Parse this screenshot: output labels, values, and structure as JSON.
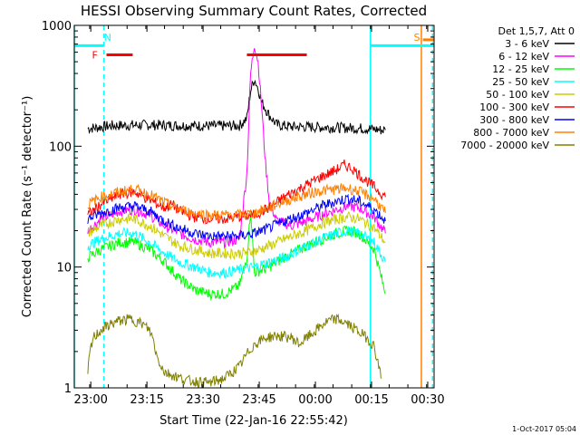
{
  "chart_data": {
    "type": "line",
    "title": "HESSI Observing Summary Count Rates, Corrected",
    "xlabel": "Start Time (22-Jan-16 22:55:42)",
    "ylabel": "Corrected Count Rate (s⁻¹ detector⁻¹)",
    "y_scale": "log",
    "ylim": [
      1,
      1000
    ],
    "xlim": [
      -0.1,
      96.0
    ],
    "x_tick_labels": [
      "23:00",
      "23:15",
      "23:30",
      "23:45",
      "00:00",
      "00:15",
      "00:30"
    ],
    "x_tick_minutes": [
      4.3,
      19.3,
      34.3,
      49.3,
      64.3,
      79.3,
      94.3
    ],
    "y_tick_labels": [
      "1",
      "10",
      "100",
      "1000"
    ],
    "y_tick_values": [
      1,
      10,
      100,
      1000
    ],
    "legend_header": "Det 1,5,7, Att 0",
    "legend_placement": "right",
    "series": [
      {
        "name": "3 - 6 keV",
        "color": "#000000",
        "points": [
          [
            3.5,
            140
          ],
          [
            10,
            148
          ],
          [
            20,
            150
          ],
          [
            30,
            148
          ],
          [
            40,
            147
          ],
          [
            44,
            148
          ],
          [
            46,
            170
          ],
          [
            47,
            290
          ],
          [
            48,
            360
          ],
          [
            49,
            300
          ],
          [
            50,
            230
          ],
          [
            52,
            180
          ],
          [
            54,
            150
          ],
          [
            58,
            145
          ],
          [
            65,
            144
          ],
          [
            72,
            142
          ],
          [
            78,
            140
          ],
          [
            82,
            136
          ],
          [
            83,
            136
          ]
        ]
      },
      {
        "name": "6 - 12 keV",
        "color": "#ff00ff",
        "points": [
          [
            3.5,
            20
          ],
          [
            7,
            25
          ],
          [
            12,
            29
          ],
          [
            16,
            30
          ],
          [
            20,
            27
          ],
          [
            24,
            22
          ],
          [
            28,
            19
          ],
          [
            32,
            17
          ],
          [
            36,
            16
          ],
          [
            40,
            16
          ],
          [
            44,
            17
          ],
          [
            46,
            60
          ],
          [
            47,
            400
          ],
          [
            48,
            700
          ],
          [
            49,
            500
          ],
          [
            50,
            200
          ],
          [
            51,
            70
          ],
          [
            52,
            35
          ],
          [
            54,
            24
          ],
          [
            58,
            22
          ],
          [
            62,
            24
          ],
          [
            66,
            27
          ],
          [
            70,
            30
          ],
          [
            73,
            32
          ],
          [
            76,
            31
          ],
          [
            80,
            26
          ],
          [
            83,
            19
          ]
        ]
      },
      {
        "name": "12 - 25 keV",
        "color": "#00ff00",
        "points": [
          [
            3.5,
            12
          ],
          [
            7,
            14
          ],
          [
            12,
            16
          ],
          [
            16,
            16
          ],
          [
            20,
            14
          ],
          [
            24,
            11
          ],
          [
            28,
            8
          ],
          [
            32,
            6.5
          ],
          [
            36,
            6
          ],
          [
            40,
            6
          ],
          [
            44,
            7
          ],
          [
            46,
            12
          ],
          [
            47,
            30
          ],
          [
            48,
            9
          ],
          [
            52,
            10
          ],
          [
            56,
            12
          ],
          [
            62,
            15
          ],
          [
            66,
            17
          ],
          [
            70,
            19
          ],
          [
            73,
            20
          ],
          [
            76,
            19
          ],
          [
            80,
            14
          ],
          [
            83,
            6
          ]
        ]
      },
      {
        "name": "25 - 50 keV",
        "color": "#00ffff",
        "points": [
          [
            3.5,
            15
          ],
          [
            7,
            17
          ],
          [
            12,
            19
          ],
          [
            16,
            19
          ],
          [
            20,
            16
          ],
          [
            24,
            13
          ],
          [
            28,
            11
          ],
          [
            32,
            10
          ],
          [
            36,
            9
          ],
          [
            40,
            9
          ],
          [
            44,
            9.5
          ],
          [
            48,
            10
          ],
          [
            52,
            11
          ],
          [
            56,
            12
          ],
          [
            62,
            15
          ],
          [
            66,
            17
          ],
          [
            70,
            19
          ],
          [
            73,
            20
          ],
          [
            76,
            19
          ],
          [
            80,
            16
          ],
          [
            83,
            11
          ]
        ]
      },
      {
        "name": "50 - 100 keV",
        "color": "#cccc00",
        "points": [
          [
            3.5,
            19
          ],
          [
            7,
            22
          ],
          [
            12,
            25
          ],
          [
            16,
            25
          ],
          [
            20,
            22
          ],
          [
            24,
            18
          ],
          [
            28,
            15
          ],
          [
            32,
            14
          ],
          [
            36,
            13
          ],
          [
            40,
            13
          ],
          [
            44,
            13
          ],
          [
            48,
            13.5
          ],
          [
            52,
            15
          ],
          [
            56,
            17
          ],
          [
            62,
            20
          ],
          [
            66,
            23
          ],
          [
            70,
            25
          ],
          [
            73,
            26
          ],
          [
            76,
            25
          ],
          [
            80,
            21
          ],
          [
            83,
            16
          ]
        ]
      },
      {
        "name": "100 - 300 keV",
        "color": "#ff0000",
        "points": [
          [
            3.5,
            27
          ],
          [
            7,
            33
          ],
          [
            12,
            40
          ],
          [
            16,
            42
          ],
          [
            20,
            36
          ],
          [
            24,
            31
          ],
          [
            26,
            33
          ],
          [
            28,
            29
          ],
          [
            32,
            26
          ],
          [
            36,
            25
          ],
          [
            40,
            25
          ],
          [
            44,
            26
          ],
          [
            48,
            27
          ],
          [
            52,
            31
          ],
          [
            56,
            38
          ],
          [
            62,
            48
          ],
          [
            66,
            56
          ],
          [
            70,
            64
          ],
          [
            72,
            70
          ],
          [
            74,
            66
          ],
          [
            76,
            58
          ],
          [
            80,
            46
          ],
          [
            83,
            38
          ]
        ]
      },
      {
        "name": "300 - 800 keV",
        "color": "#0000ff",
        "points": [
          [
            3.5,
            25
          ],
          [
            7,
            28
          ],
          [
            12,
            31
          ],
          [
            16,
            32
          ],
          [
            20,
            29
          ],
          [
            24,
            24
          ],
          [
            28,
            21
          ],
          [
            32,
            19
          ],
          [
            36,
            18
          ],
          [
            40,
            18
          ],
          [
            44,
            18
          ],
          [
            48,
            19
          ],
          [
            52,
            21
          ],
          [
            56,
            24
          ],
          [
            62,
            28
          ],
          [
            66,
            32
          ],
          [
            70,
            35
          ],
          [
            73,
            37
          ],
          [
            76,
            35
          ],
          [
            80,
            30
          ],
          [
            83,
            24
          ]
        ]
      },
      {
        "name": "800 - 7000 keV",
        "color": "#ff8000",
        "points": [
          [
            3.5,
            33
          ],
          [
            7,
            38
          ],
          [
            12,
            42
          ],
          [
            16,
            44
          ],
          [
            20,
            40
          ],
          [
            24,
            34
          ],
          [
            28,
            30
          ],
          [
            32,
            28
          ],
          [
            36,
            27
          ],
          [
            40,
            27
          ],
          [
            44,
            27
          ],
          [
            48,
            28
          ],
          [
            52,
            31
          ],
          [
            56,
            35
          ],
          [
            62,
            40
          ],
          [
            66,
            43
          ],
          [
            70,
            44
          ],
          [
            73,
            45
          ],
          [
            76,
            42
          ],
          [
            80,
            37
          ],
          [
            83,
            28
          ]
        ]
      },
      {
        "name": "7000 - 20000 keV",
        "color": "#808000",
        "points": [
          [
            3.5,
            1.3
          ],
          [
            4,
            1.9
          ],
          [
            5,
            2.6
          ],
          [
            7,
            3.0
          ],
          [
            9,
            3.3
          ],
          [
            12,
            3.6
          ],
          [
            15,
            3.7
          ],
          [
            18,
            3.4
          ],
          [
            20,
            3.0
          ],
          [
            21,
            2.5
          ],
          [
            22,
            1.8
          ],
          [
            24,
            1.35
          ],
          [
            30,
            1.15
          ],
          [
            36,
            1.1
          ],
          [
            40,
            1.2
          ],
          [
            44,
            1.5
          ],
          [
            46,
            1.9
          ],
          [
            48,
            2.3
          ],
          [
            51,
            2.6
          ],
          [
            54,
            2.7
          ],
          [
            58,
            2.6
          ],
          [
            60,
            2.3
          ],
          [
            62,
            2.6
          ],
          [
            64,
            2.9
          ],
          [
            66,
            3.3
          ],
          [
            68,
            3.6
          ],
          [
            70,
            3.7
          ],
          [
            72,
            3.5
          ],
          [
            74,
            3.2
          ],
          [
            76,
            2.9
          ],
          [
            78,
            2.6
          ],
          [
            80,
            2.2
          ],
          [
            81,
            1.6
          ],
          [
            82,
            1.2
          ]
        ]
      }
    ],
    "horizontal_segments": [
      {
        "color": "#00ffff",
        "x": [
          -0.1,
          7.8
        ],
        "y": 680
      },
      {
        "color": "#00ffff",
        "x": [
          79.0,
          96.0
        ],
        "y": 680
      },
      {
        "color": "#ff0000",
        "x": [
          8.5,
          15.5
        ],
        "y": 570
      },
      {
        "color": "#ff0000",
        "x": [
          46.0,
          62.0
        ],
        "y": 570
      },
      {
        "color": "#ff8000",
        "x": [
          93.0,
          96.0
        ],
        "y": 760
      }
    ],
    "vertical_lines": [
      {
        "color": "#00ffff",
        "x": -0.1,
        "style": "solid"
      },
      {
        "color": "#00ffff",
        "x": 7.8,
        "style": "dashed"
      },
      {
        "color": "#00ffff",
        "x": 79.0,
        "style": "solid"
      },
      {
        "color": "#00ffff",
        "x": 95.6,
        "style": "dashed"
      },
      {
        "color": "#ff8000",
        "x": 92.6,
        "style": "solid"
      }
    ],
    "annotations": [
      {
        "text": "N",
        "color": "#00ffff",
        "x": 8.8,
        "y": 800
      },
      {
        "text": "F",
        "color": "#ff0000",
        "x": 5.4,
        "y": 570
      },
      {
        "text": "S",
        "color": "#ff8000",
        "x": 91.4,
        "y": 800
      }
    ]
  },
  "footer": "1-Oct-2017 05:04"
}
